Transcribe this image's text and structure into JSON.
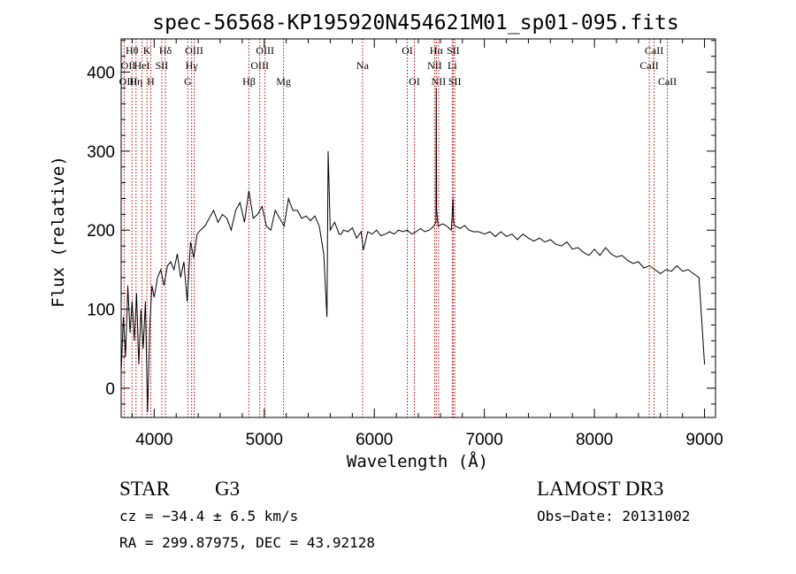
{
  "chart_data": {
    "type": "line",
    "title": "spec-56568-KP195920N454621M01_sp01-095.fits",
    "xlabel": "Wavelength (Å)",
    "ylabel": "Flux (relative)",
    "xlim": [
      3700,
      9100
    ],
    "ylim": [
      -37,
      442
    ],
    "x_ticks": [
      4000,
      5000,
      6000,
      7000,
      8000,
      9000
    ],
    "y_ticks": [
      0,
      100,
      200,
      300,
      400
    ],
    "grid": false,
    "series": [
      {
        "x": [
          3700,
          3720,
          3740,
          3760,
          3780,
          3800,
          3820,
          3840,
          3860,
          3880,
          3900,
          3920,
          3940,
          3960,
          3980,
          4000,
          4030,
          4060,
          4090,
          4120,
          4150,
          4180,
          4210,
          4240,
          4270,
          4300,
          4330,
          4360,
          4390,
          4420,
          4460,
          4500,
          4540,
          4580,
          4620,
          4660,
          4700,
          4740,
          4780,
          4820,
          4860,
          4900,
          4940,
          4980,
          5020,
          5060,
          5100,
          5140,
          5180,
          5220,
          5260,
          5300,
          5340,
          5380,
          5420,
          5460,
          5500,
          5540,
          5570,
          5580,
          5600,
          5640,
          5680,
          5700,
          5720,
          5760,
          5800,
          5840,
          5880,
          5900,
          5940,
          5980,
          6020,
          6060,
          6100,
          6140,
          6180,
          6220,
          6260,
          6300,
          6340,
          6380,
          6420,
          6460,
          6500,
          6540,
          6560,
          6563,
          6566,
          6580,
          6620,
          6660,
          6700,
          6716,
          6720,
          6731,
          6740,
          6780,
          6820,
          6860,
          6900,
          6950,
          7000,
          7050,
          7100,
          7150,
          7200,
          7250,
          7300,
          7350,
          7400,
          7450,
          7500,
          7550,
          7600,
          7650,
          7700,
          7750,
          7800,
          7850,
          7900,
          7950,
          8000,
          8050,
          8100,
          8150,
          8200,
          8250,
          8300,
          8350,
          8400,
          8450,
          8500,
          8550,
          8600,
          8650,
          8700,
          8750,
          8800,
          8850,
          8900,
          8950,
          9000
        ],
        "values": [
          20,
          90,
          40,
          130,
          70,
          110,
          60,
          120,
          30,
          100,
          50,
          110,
          -30,
          80,
          130,
          115,
          140,
          150,
          130,
          155,
          160,
          150,
          170,
          140,
          160,
          110,
          185,
          165,
          195,
          200,
          205,
          215,
          225,
          210,
          220,
          215,
          200,
          225,
          235,
          210,
          250,
          215,
          220,
          230,
          205,
          200,
          225,
          215,
          205,
          240,
          225,
          225,
          215,
          218,
          212,
          218,
          205,
          170,
          90,
          300,
          200,
          210,
          195,
          195,
          200,
          198,
          203,
          190,
          198,
          175,
          198,
          195,
          200,
          193,
          195,
          198,
          195,
          200,
          198,
          200,
          195,
          198,
          202,
          198,
          200,
          205,
          210,
          380,
          225,
          205,
          208,
          205,
          200,
          240,
          210,
          205,
          205,
          202,
          206,
          200,
          198,
          198,
          195,
          198,
          192,
          198,
          192,
          195,
          188,
          195,
          190,
          186,
          190,
          185,
          188,
          182,
          180,
          185,
          176,
          178,
          172,
          168,
          176,
          168,
          178,
          170,
          166,
          168,
          162,
          158,
          160,
          152,
          155,
          150,
          145,
          150,
          148,
          155,
          148,
          150,
          145,
          140,
          30
        ]
      }
    ],
    "spectral_lines": [
      {
        "label": "Hθ",
        "x": 3798,
        "row": 1
      },
      {
        "label": "OII",
        "x": 3727,
        "row": 2
      },
      {
        "label": "OIII",
        "x": 3727,
        "row": 3
      },
      {
        "label": "Hη",
        "x": 3835,
        "row": 3
      },
      {
        "label": "K",
        "x": 3934,
        "row": 1
      },
      {
        "label": "HeI",
        "x": 3889,
        "row": 2
      },
      {
        "label": "H",
        "x": 3969,
        "row": 3
      },
      {
        "label": "Hδ",
        "x": 4102,
        "row": 1
      },
      {
        "label": "SII",
        "x": 4069,
        "row": 2
      },
      {
        "label": "OIII",
        "x": 4363,
        "row": 1
      },
      {
        "label": "Hγ",
        "x": 4340,
        "row": 2
      },
      {
        "label": "G",
        "x": 4305,
        "row": 3
      },
      {
        "label": "OIII",
        "x": 5007,
        "row": 1
      },
      {
        "label": "OIII",
        "x": 4959,
        "row": 2
      },
      {
        "label": "Hβ",
        "x": 4861,
        "row": 3
      },
      {
        "label": "Mg",
        "x": 5175,
        "row": 3
      },
      {
        "label": "Na",
        "x": 5893,
        "row": 2
      },
      {
        "label": "OI",
        "x": 6300,
        "row": 1
      },
      {
        "label": "OI",
        "x": 6364,
        "row": 3
      },
      {
        "label": "Hα",
        "x": 6563,
        "row": 1
      },
      {
        "label": "SII",
        "x": 6716,
        "row": 1
      },
      {
        "label": "NII",
        "x": 6548,
        "row": 2
      },
      {
        "label": "Li",
        "x": 6708,
        "row": 2
      },
      {
        "label": "NII",
        "x": 6584,
        "row": 3
      },
      {
        "label": "SII",
        "x": 6731,
        "row": 3
      },
      {
        "label": "CaII",
        "x": 8542,
        "row": 1
      },
      {
        "label": "CaII",
        "x": 8498,
        "row": 2
      },
      {
        "label": "CaII",
        "x": 8662,
        "row": 3
      }
    ]
  },
  "info": {
    "object_class": "STAR",
    "subclass": "G3",
    "survey": "LAMOST DR3",
    "cz": "cz = −34.4 ± 6.5 km/s",
    "obs_date": "Obs−Date: 20131002",
    "coords": "RA = 299.87975, DEC =  43.92128"
  },
  "colors": {
    "spectrum": "#000000",
    "line_markers": "#c00000"
  }
}
